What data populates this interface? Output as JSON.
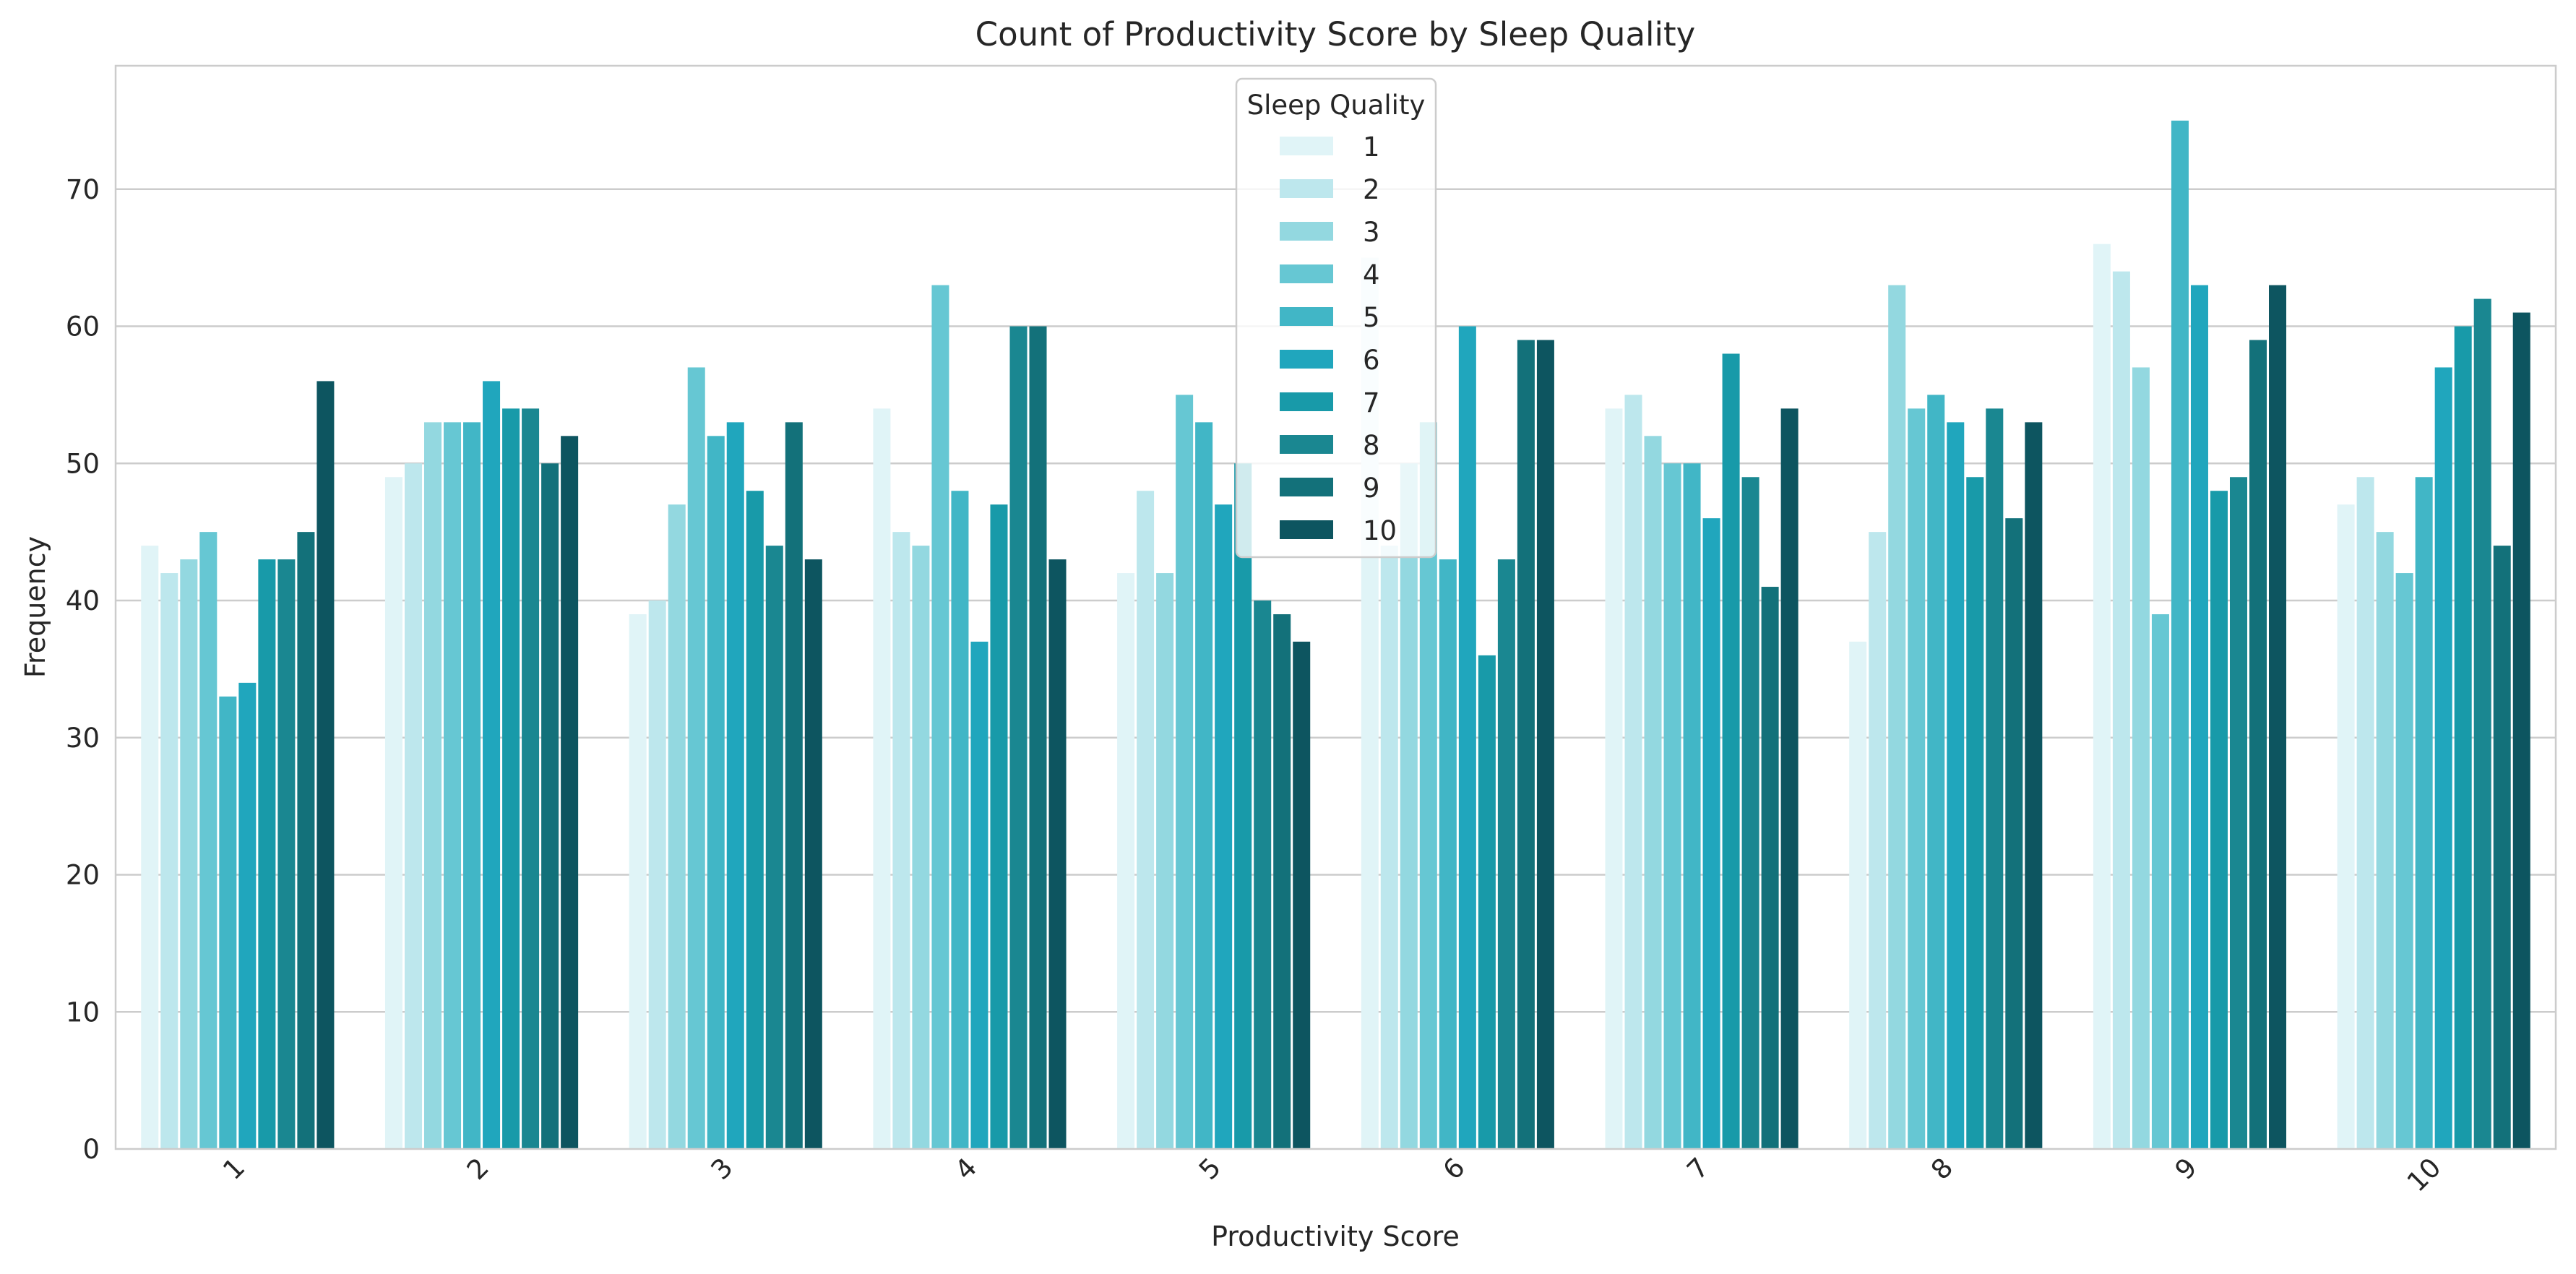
{
  "chart_data": {
    "type": "bar",
    "title": "Count of Productivity Score by Sleep Quality",
    "xlabel": "Productivity Score",
    "ylabel": "Frequency",
    "ylim": [
      0,
      79
    ],
    "yticks": [
      0,
      10,
      20,
      30,
      40,
      50,
      60,
      70
    ],
    "grid": "horizontal",
    "legend_position": "top-center",
    "legend_title": "Sleep Quality",
    "categories": [
      "1",
      "2",
      "3",
      "4",
      "5",
      "6",
      "7",
      "8",
      "9",
      "10"
    ],
    "series": [
      {
        "name": "1",
        "color": "#e0f4f7",
        "values": [
          44,
          49,
          39,
          54,
          42,
          65,
          54,
          37,
          66,
          47
        ]
      },
      {
        "name": "2",
        "color": "#bde7ed",
        "values": [
          42,
          50,
          40,
          45,
          48,
          44,
          55,
          45,
          64,
          49
        ]
      },
      {
        "name": "3",
        "color": "#93d8e0",
        "values": [
          43,
          53,
          47,
          44,
          42,
          50,
          52,
          63,
          57,
          45
        ]
      },
      {
        "name": "4",
        "color": "#66c7d3",
        "values": [
          45,
          53,
          57,
          63,
          55,
          53,
          50,
          54,
          39,
          42
        ]
      },
      {
        "name": "5",
        "color": "#41b6c6",
        "values": [
          33,
          53,
          52,
          48,
          53,
          43,
          50,
          55,
          75,
          49
        ]
      },
      {
        "name": "6",
        "color": "#20a6bd",
        "values": [
          34,
          56,
          53,
          37,
          47,
          60,
          46,
          53,
          63,
          57
        ]
      },
      {
        "name": "7",
        "color": "#189aa9",
        "values": [
          43,
          54,
          48,
          47,
          50,
          36,
          58,
          49,
          48,
          60
        ]
      },
      {
        "name": "8",
        "color": "#1a8791",
        "values": [
          43,
          54,
          44,
          60,
          40,
          43,
          49,
          54,
          49,
          62
        ]
      },
      {
        "name": "9",
        "color": "#13717a",
        "values": [
          45,
          50,
          53,
          60,
          39,
          59,
          41,
          46,
          59,
          44
        ]
      },
      {
        "name": "10",
        "color": "#0d5560",
        "values": [
          56,
          52,
          43,
          43,
          37,
          59,
          54,
          53,
          63,
          61
        ]
      }
    ]
  }
}
